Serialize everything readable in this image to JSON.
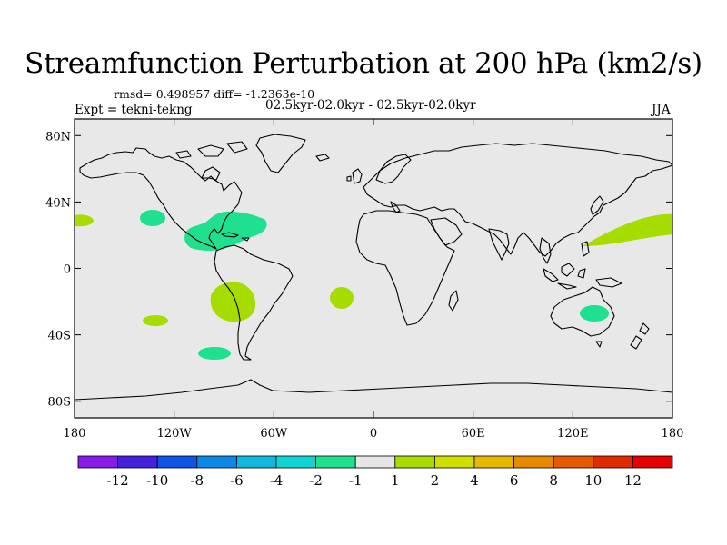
{
  "header": {
    "title": "Streamfunction Perturbation at 200 hPa (km2/s)",
    "stats": "rmsd= 0.498957 diff= -1.2363e-10",
    "experiment": "Expt = tekni-tekng",
    "period": "02.5kyr-02.0kyr - 02.5kyr-02.0kyr",
    "season": "JJA"
  },
  "map": {
    "projection": "cylindrical equidistant",
    "lon_range": [
      -180,
      180
    ],
    "lat_range": [
      -90,
      90
    ],
    "background_color": "#e8e8e8",
    "lat_ticks": [
      {
        "value": 80,
        "label": "80N"
      },
      {
        "value": 40,
        "label": "40N"
      },
      {
        "value": 0,
        "label": "0"
      },
      {
        "value": -40,
        "label": "40S"
      },
      {
        "value": -80,
        "label": "80S"
      }
    ],
    "lon_ticks": [
      {
        "value": -180,
        "label": "180"
      },
      {
        "value": -120,
        "label": "120W"
      },
      {
        "value": -60,
        "label": "60W"
      },
      {
        "value": 0,
        "label": "0"
      },
      {
        "value": 60,
        "label": "60E"
      },
      {
        "value": 120,
        "label": "120E"
      },
      {
        "value": 180,
        "label": "180"
      }
    ],
    "anomalies": [
      {
        "name": "north-pacific-west-edge",
        "level": "1 to 2",
        "color": "#a6dc00",
        "lon": -178,
        "lat": 29
      },
      {
        "name": "east-pacific-north",
        "level": "-2 to -1",
        "color": "#1ee08e",
        "lon": -133,
        "lat": 32
      },
      {
        "name": "caribbean",
        "level": "-2 to -1",
        "color": "#1ee08e",
        "lon": -90,
        "lat": 23
      },
      {
        "name": "south-america-west",
        "level": "1 to 2",
        "color": "#a6dc00",
        "lon": -96,
        "lat": -19
      },
      {
        "name": "south-atlantic",
        "level": "1 to 2",
        "color": "#a6dc00",
        "lon": -19,
        "lat": -18
      },
      {
        "name": "south-pacific-mid",
        "level": "1 to 2",
        "color": "#a6dc00",
        "lon": -133,
        "lat": -32
      },
      {
        "name": "south-pacific-east",
        "level": "-2 to -1",
        "color": "#1ee08e",
        "lon": -98,
        "lat": -52
      },
      {
        "name": "west-pacific-band",
        "level": "1 to 2",
        "color": "#a6dc00",
        "lon": 155,
        "lat": 24
      },
      {
        "name": "eastern-australia",
        "level": "-2 to -1",
        "color": "#1ee08e",
        "lon": 143,
        "lat": -26
      }
    ]
  },
  "colorbar": {
    "labels": [
      "-12",
      "-10",
      "-8",
      "-6",
      "-4",
      "-2",
      "-1",
      "1",
      "2",
      "4",
      "6",
      "8",
      "10",
      "12"
    ],
    "colors": [
      "#8c1ae6",
      "#4422dc",
      "#1054e6",
      "#0a8ae6",
      "#10b8e0",
      "#10d4d4",
      "#1ee08e",
      "#e6e6e6",
      "#a6dc00",
      "#cfe000",
      "#e6b800",
      "#e68a00",
      "#e65a00",
      "#e02a00",
      "#e60000"
    ]
  }
}
